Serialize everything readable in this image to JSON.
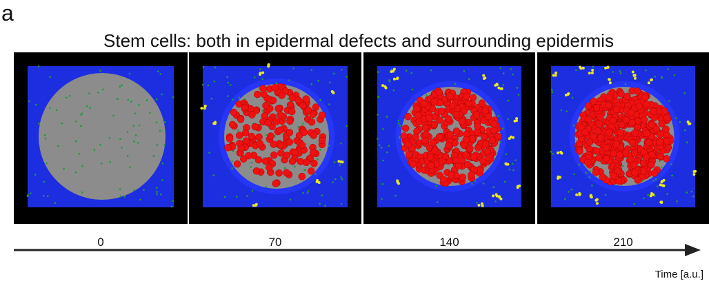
{
  "figure": {
    "panel_label": "a",
    "title": "Stem cells: both in epidermal defects and surrounding epidermis",
    "time_points": [
      0,
      70,
      140,
      210
    ],
    "axis_label": "Time [a.u.]"
  }
}
